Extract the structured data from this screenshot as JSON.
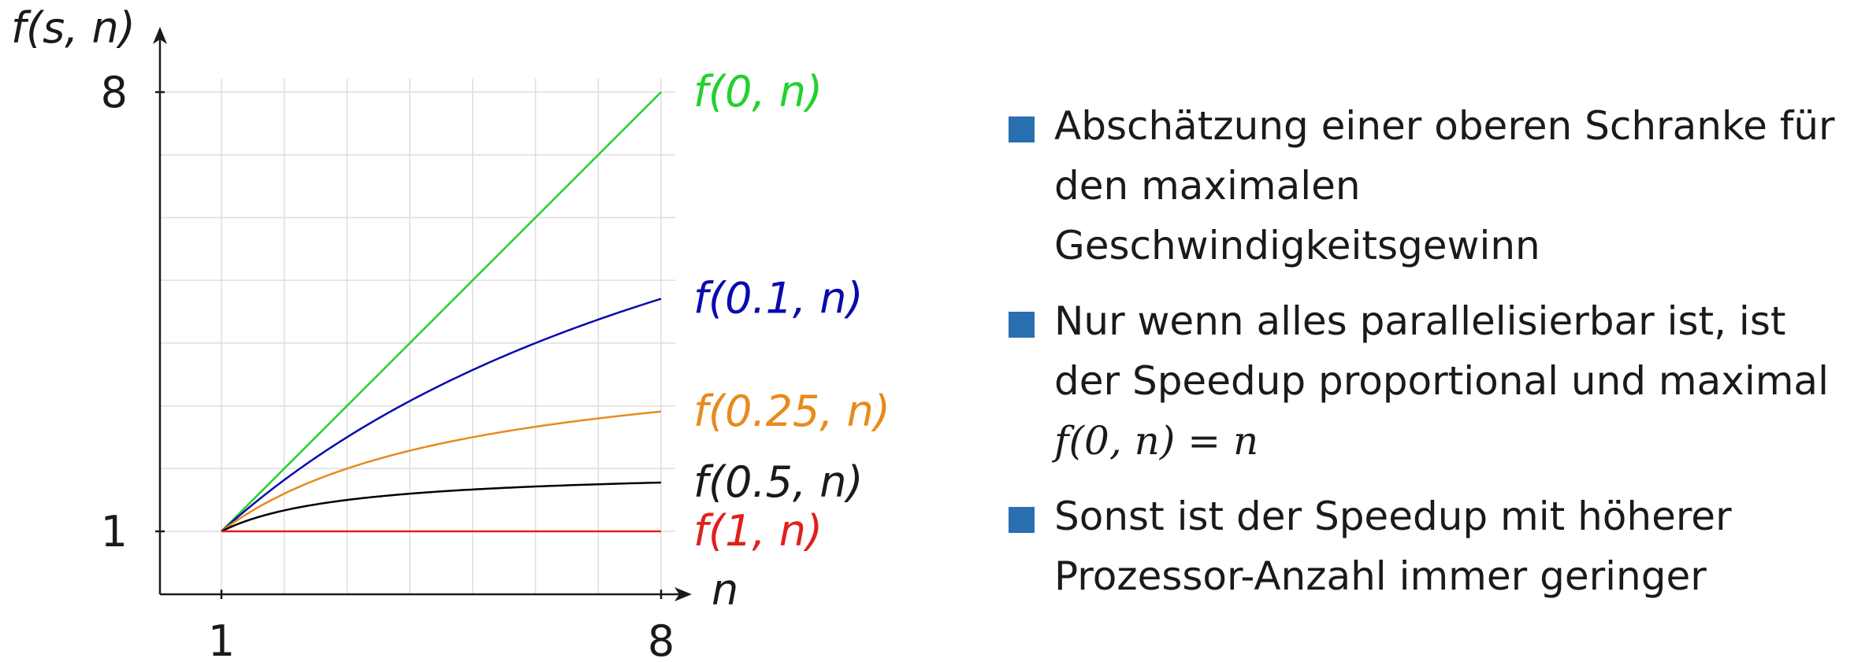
{
  "chart_data": {
    "type": "line",
    "ylabel": "f(s, n)",
    "xlabel": "n",
    "xlim": [
      1,
      8
    ],
    "ylim": [
      1,
      8
    ],
    "x_ticks": [
      "1",
      "8"
    ],
    "y_ticks": [
      "1",
      "8"
    ],
    "grid": true,
    "series": [
      {
        "name": "f(0, n)",
        "s": 0,
        "color": "#22d12e",
        "label_color": "#22d12e"
      },
      {
        "name": "f(0.1, n)",
        "s": 0.1,
        "color": "#0a0ab0",
        "label_color": "#0a0ab0"
      },
      {
        "name": "f(0.25, n)",
        "s": 0.25,
        "color": "#e88a1c",
        "label_color": "#e88a1c"
      },
      {
        "name": "f(0.5, n)",
        "s": 0.5,
        "color": "#000000",
        "label_color": "#1a1a1a"
      },
      {
        "name": "f(1, n)",
        "s": 1,
        "color": "#e0201a",
        "label_color": "#e0201a"
      }
    ]
  },
  "bullets": {
    "marker_color": "#2a6fb0",
    "items": [
      {
        "text": "Abschätzung einer oberen Schranke für den maximalen Geschwindigkeitsgewinn"
      },
      {
        "text": "Nur wenn alles parallelisierbar ist, ist der Speedup proportional und maximal",
        "formula": "f(0, n) = n"
      },
      {
        "text": "Sonst ist der Speedup mit höherer Prozessor-Anzahl immer geringer"
      }
    ]
  }
}
